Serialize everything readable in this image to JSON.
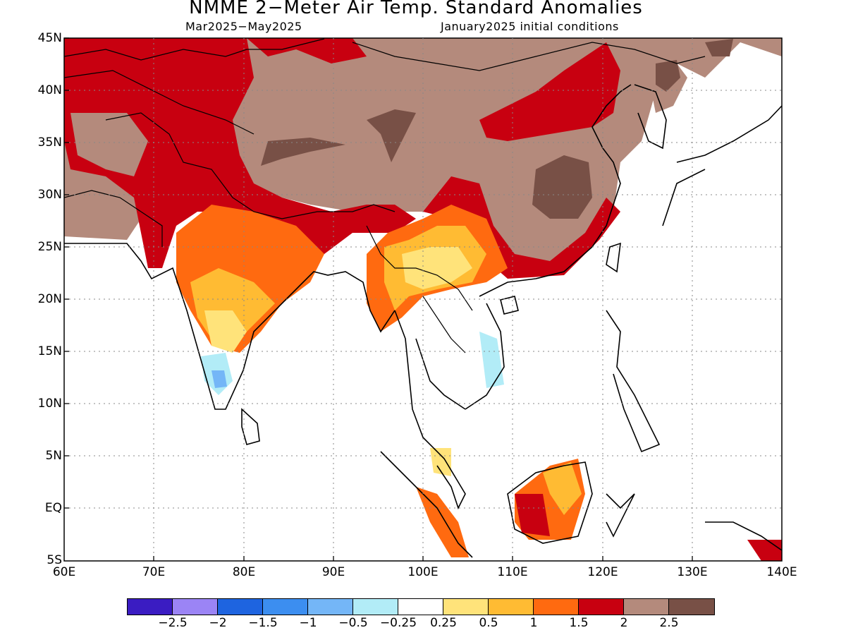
{
  "title": "NMME 2−Meter Air Temp. Standard Anomalies",
  "subtitle_left": "Mar2025−May2025",
  "subtitle_right": "January2025 initial conditions",
  "lat_labels": [
    "45N",
    "40N",
    "35N",
    "30N",
    "25N",
    "20N",
    "15N",
    "10N",
    "5N",
    "EQ",
    "5S"
  ],
  "lon_labels": [
    "60E",
    "70E",
    "80E",
    "90E",
    "100E",
    "110E",
    "120E",
    "130E",
    "140E"
  ],
  "colorbar": {
    "colors": [
      "#3a1cc2",
      "#9b84f5",
      "#1e64e0",
      "#3c8ef0",
      "#74b6f7",
      "#b2ecf7",
      "#ffffff",
      "#ffe37a",
      "#ffbb33",
      "#ff6a10",
      "#c80010",
      "#b48a7c",
      "#785046"
    ],
    "labels": [
      "−2.5",
      "−2",
      "−1.5",
      "−1",
      "−0.5",
      "−0.25",
      "0.25",
      "0.5",
      "1",
      "1.5",
      "2",
      "2.5"
    ]
  }
}
